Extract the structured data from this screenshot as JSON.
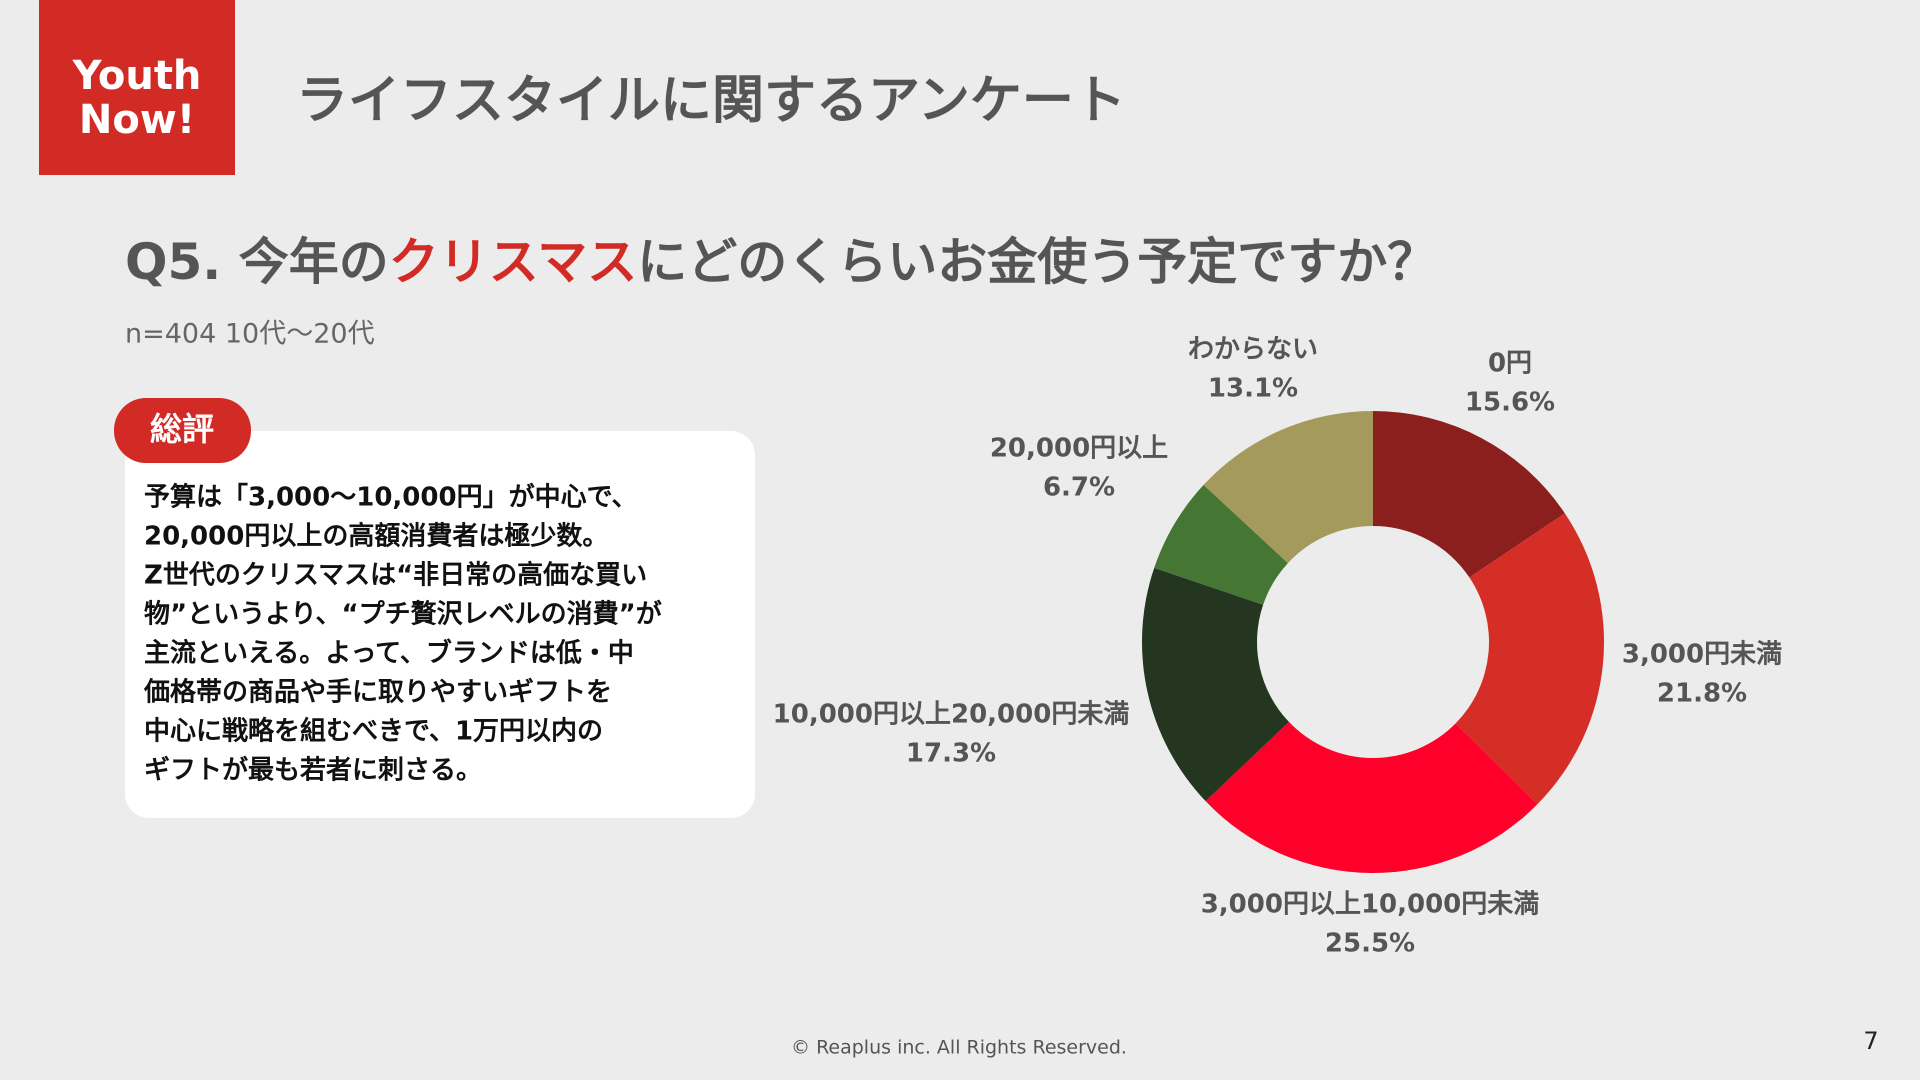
{
  "logo": [
    "Youth",
    "Now!"
  ],
  "header": {
    "title": "ライフスタイルに関するアンケート"
  },
  "question": {
    "prefix": "Q5. 今年の",
    "highlight": "クリスマス",
    "suffix": "にどのくらいお金使う予定ですか？"
  },
  "sample": "n=404 10代〜20代",
  "summary": {
    "badge": "総評",
    "lines": [
      "予算は「3,000〜10,000円」が中心で、",
      "20,000円以上の高額消費者は極少数。",
      "Z世代のクリスマスは“非日常の高価な買い",
      "物”というより、“プチ贅沢レベルの消費”が",
      "主流といえる。よって、ブランドは低・中",
      "価格帯の商品や手に取りやすいギフトを",
      "中心に戦略を組むべきで、1万円以内の",
      "ギフトが最も若者に刺さる。"
    ]
  },
  "chart_data": {
    "type": "donut",
    "categories": [
      "0円",
      "3,000円未満",
      "3,000円以上10,000円未満",
      "10,000円以上20,000円未満",
      "20,000円以上",
      "わからない"
    ],
    "values": [
      15.6,
      21.8,
      25.5,
      17.3,
      6.7,
      13.1
    ],
    "value_labels": [
      "15.6%",
      "21.8%",
      "25.5%",
      "17.3%",
      "6.7%",
      "13.1%"
    ],
    "colors": [
      "#8b1f1d",
      "#d42e27",
      "#ff002b",
      "#24361f",
      "#457633",
      "#a39a5c"
    ]
  },
  "footer": "© Reaplus inc. All Rights Reserved.",
  "page_number": 7
}
